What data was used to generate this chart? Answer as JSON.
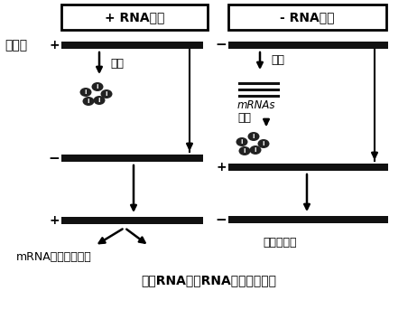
{
  "title": "正链RNA和负RNA基因组的复制",
  "left_box_title": "+ RNA病毒",
  "right_box_title": "- RNA病毒",
  "genome_label": "基因组",
  "fanyi": "翻译",
  "zhuanlu": "转录",
  "mRNA_label": "mRNAs",
  "daughter_label": "子代基因组",
  "bottom_label": "mRNA或子代基因组",
  "bg_color": "#ffffff",
  "bar_color": "#111111",
  "text_color": "#000000"
}
